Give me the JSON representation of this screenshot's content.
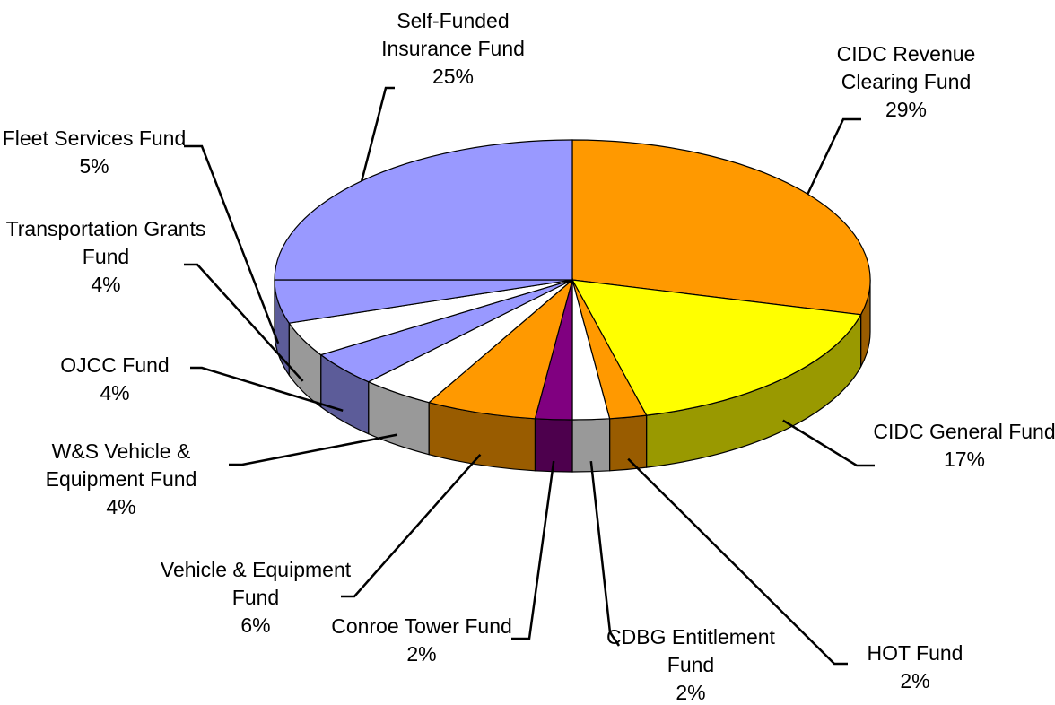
{
  "chart_data": {
    "type": "pie3d",
    "categories": [
      "CIDC Revenue Clearing Fund",
      "CIDC General Fund",
      "HOT Fund",
      "CDBG Entitlement Fund",
      "Conroe Tower Fund",
      "Vehicle & Equipment Fund",
      "W&S Vehicle & Equipment Fund",
      "OJCC Fund",
      "Transportation Grants Fund",
      "Fleet Services Fund",
      "Self-Funded Insurance Fund"
    ],
    "values": [
      29,
      17,
      2,
      2,
      2,
      6,
      4,
      4,
      4,
      5,
      25
    ],
    "value_labels": [
      "29%",
      "17%",
      "2%",
      "2%",
      "2%",
      "6%",
      "4%",
      "4%",
      "4%",
      "5%",
      "25%"
    ],
    "colors": [
      "#ff9900",
      "#ffff00",
      "#ff9900",
      "#ffffff",
      "#800080",
      "#ff9900",
      "#ffffff",
      "#9999ff",
      "#ffffff",
      "#9999ff",
      "#9999ff"
    ]
  }
}
